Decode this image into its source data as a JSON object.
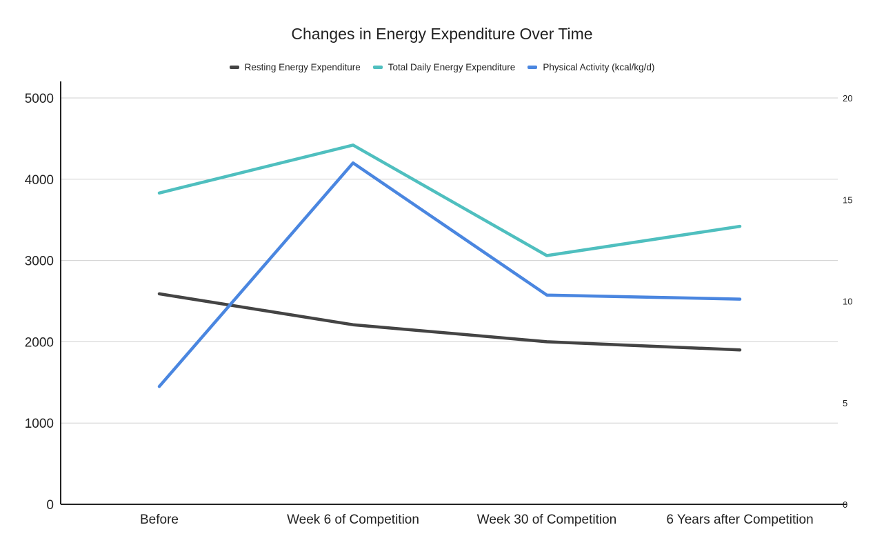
{
  "chart_data": {
    "type": "line",
    "title": "Changes in Energy Expenditure Over Time",
    "xlabel": "",
    "ylabel": "",
    "categories": [
      "Before",
      "Week 6 of Competition",
      "Week 30 of Competition",
      "6 Years after Competition"
    ],
    "y_left": {
      "range": [
        0,
        5000
      ],
      "ticks": [
        "0",
        "1000",
        "2000",
        "3000",
        "4000",
        "5000"
      ]
    },
    "y_right": {
      "range": [
        0,
        20
      ],
      "ticks": [
        "0",
        "5",
        "10",
        "15",
        "20"
      ]
    },
    "grid": true,
    "legend_position": "top",
    "series": [
      {
        "name": "Resting Energy Expenditure",
        "axis": "left",
        "color": "#444444",
        "values": [
          2590,
          2210,
          2000,
          1900
        ]
      },
      {
        "name": "Total Daily Energy Expenditure",
        "axis": "left",
        "color": "#4fbfbf",
        "values": [
          3830,
          4420,
          3060,
          3420
        ]
      },
      {
        "name": "Physical Activity (kcal/kg/d)",
        "axis": "right",
        "color": "#4a86e0",
        "values": [
          5.8,
          16.8,
          10.3,
          10.1
        ]
      }
    ]
  }
}
